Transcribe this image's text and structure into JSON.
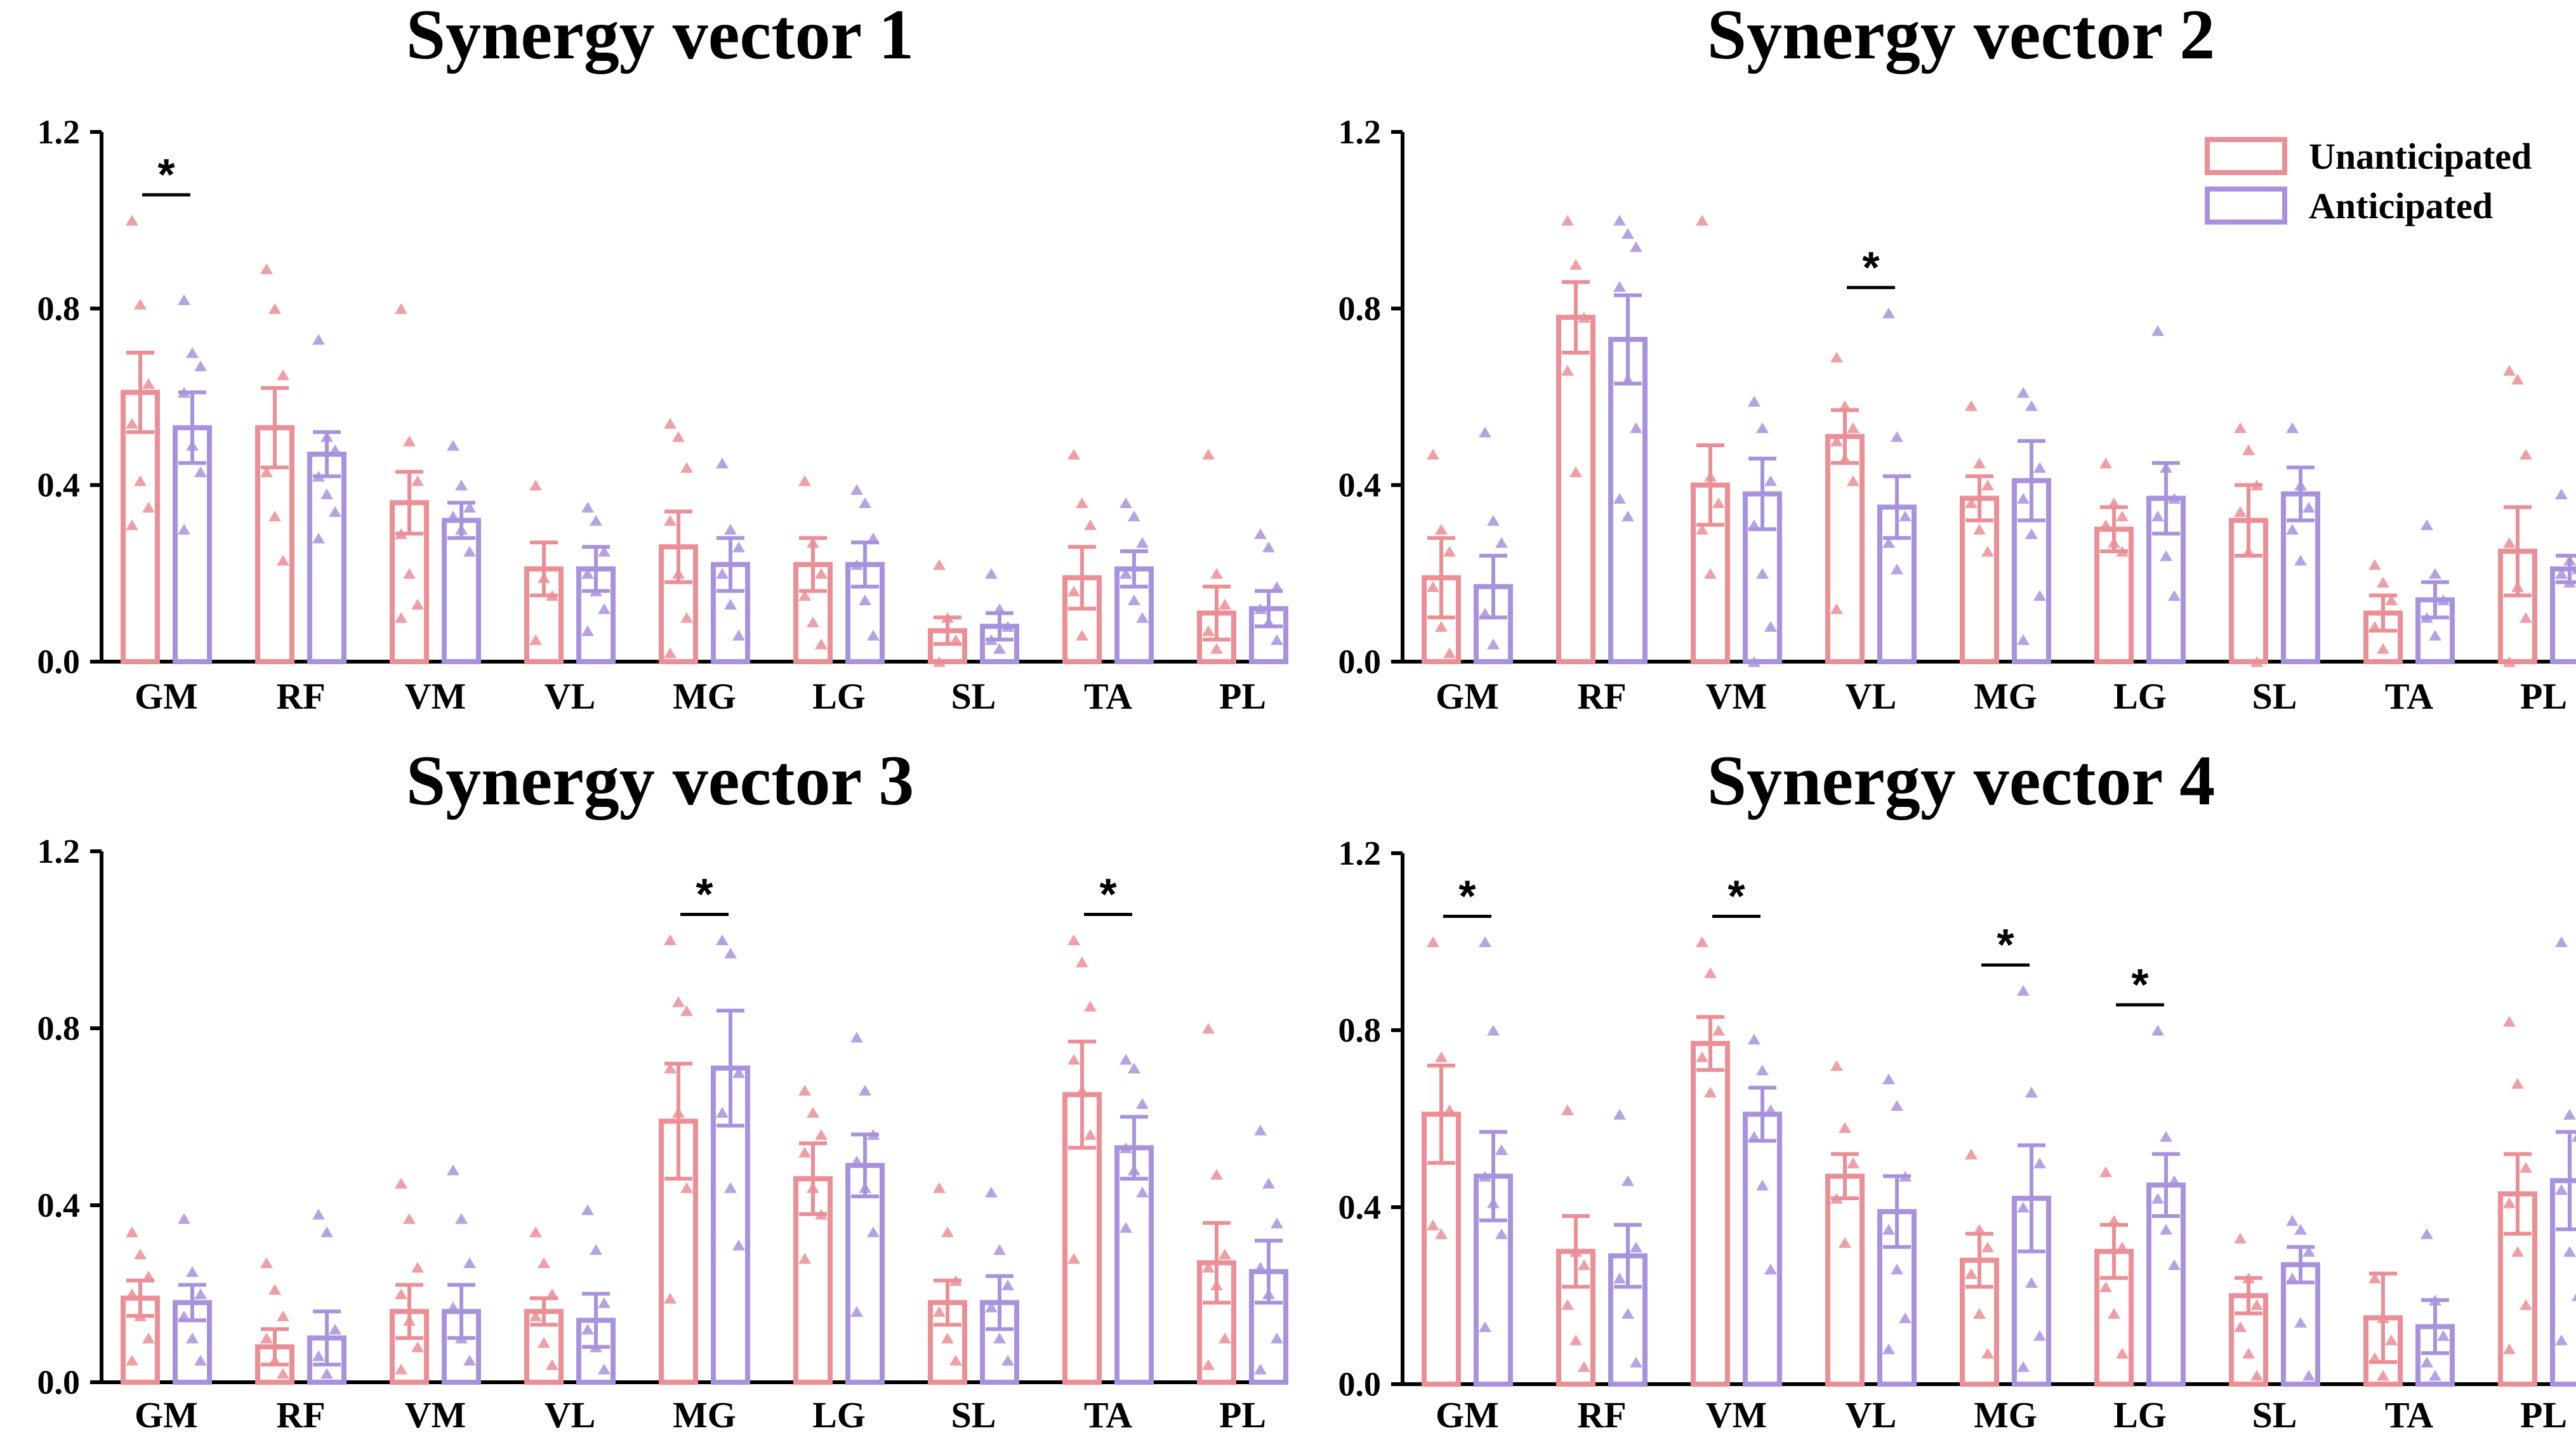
{
  "chart_data": [
    {
      "type": "bar",
      "title": "Synergy vector 1",
      "categories": [
        "GM",
        "RF",
        "VM",
        "VL",
        "MG",
        "LG",
        "SL",
        "TA",
        "PL"
      ],
      "ylim": [
        0,
        1.2
      ],
      "yticks": [
        "0.0",
        "0.4",
        "0.8",
        "1.2"
      ],
      "series": [
        {
          "name": "Unanticipated",
          "values": [
            0.61,
            0.53,
            0.36,
            0.21,
            0.26,
            0.22,
            0.07,
            0.19,
            0.11
          ],
          "errors": [
            0.09,
            0.09,
            0.07,
            0.06,
            0.08,
            0.06,
            0.03,
            0.07,
            0.06
          ],
          "points": [
            [
              1.0,
              0.81,
              0.63,
              0.54,
              0.41,
              0.35,
              0.31
            ],
            [
              0.89,
              0.8,
              0.65,
              0.43,
              0.33,
              0.23
            ],
            [
              0.8,
              0.5,
              0.41,
              0.29,
              0.2,
              0.13,
              0.1
            ],
            [
              0.4,
              0.19,
              0.15,
              0.05
            ],
            [
              0.54,
              0.51,
              0.44,
              0.32,
              0.2,
              0.1,
              0.02
            ],
            [
              0.41,
              0.27,
              0.2,
              0.15,
              0.09,
              0.04
            ],
            [
              0.22,
              0.1,
              0.05,
              0.0
            ],
            [
              0.47,
              0.36,
              0.31,
              0.16,
              0.06
            ],
            [
              0.47,
              0.2,
              0.13,
              0.07,
              0.03
            ]
          ]
        },
        {
          "name": "Anticipated",
          "values": [
            0.53,
            0.47,
            0.32,
            0.21,
            0.22,
            0.22,
            0.08,
            0.21,
            0.12
          ],
          "errors": [
            0.08,
            0.05,
            0.04,
            0.05,
            0.06,
            0.05,
            0.03,
            0.04,
            0.04
          ],
          "points": [
            [
              0.82,
              0.7,
              0.67,
              0.61,
              0.49,
              0.43,
              0.3
            ],
            [
              0.73,
              0.51,
              0.48,
              0.42,
              0.38,
              0.34,
              0.28
            ],
            [
              0.49,
              0.4,
              0.35,
              0.33,
              0.3,
              0.25
            ],
            [
              0.35,
              0.32,
              0.25,
              0.2,
              0.16,
              0.12,
              0.07
            ],
            [
              0.45,
              0.3,
              0.26,
              0.2,
              0.13,
              0.06
            ],
            [
              0.39,
              0.36,
              0.28,
              0.22,
              0.14,
              0.06
            ],
            [
              0.2,
              0.12,
              0.08,
              0.05,
              0.03
            ],
            [
              0.36,
              0.33,
              0.27,
              0.2,
              0.14,
              0.1
            ],
            [
              0.29,
              0.26,
              0.17,
              0.12,
              0.09,
              0.05
            ]
          ]
        }
      ],
      "significance": [
        {
          "category": "GM",
          "label": "*"
        }
      ],
      "legend": false
    },
    {
      "type": "bar",
      "title": "Synergy vector 2",
      "categories": [
        "GM",
        "RF",
        "VM",
        "VL",
        "MG",
        "LG",
        "SL",
        "TA",
        "PL"
      ],
      "ylim": [
        0,
        1.2
      ],
      "yticks": [
        "0.0",
        "0.4",
        "0.8",
        "1.2"
      ],
      "series": [
        {
          "name": "Unanticipated",
          "values": [
            0.19,
            0.78,
            0.4,
            0.51,
            0.37,
            0.3,
            0.32,
            0.11,
            0.25
          ],
          "errors": [
            0.09,
            0.08,
            0.09,
            0.06,
            0.05,
            0.05,
            0.08,
            0.04,
            0.1
          ],
          "points": [
            [
              0.47,
              0.3,
              0.25,
              0.17,
              0.08,
              0.02
            ],
            [
              1.0,
              0.9,
              0.78,
              0.66,
              0.43
            ],
            [
              1.0,
              0.42,
              0.36,
              0.3,
              0.2
            ],
            [
              0.69,
              0.58,
              0.53,
              0.5,
              0.46,
              0.41,
              0.12
            ],
            [
              0.58,
              0.45,
              0.4,
              0.36,
              0.3,
              0.25
            ],
            [
              0.45,
              0.36,
              0.33,
              0.31,
              0.27,
              0.25
            ],
            [
              0.53,
              0.48,
              0.4,
              0.34,
              0.25,
              0.0
            ],
            [
              0.22,
              0.18,
              0.14,
              0.08,
              0.03
            ],
            [
              0.66,
              0.64,
              0.47,
              0.27,
              0.17,
              0.1,
              0.0
            ]
          ]
        },
        {
          "name": "Anticipated",
          "values": [
            0.17,
            0.73,
            0.38,
            0.35,
            0.41,
            0.37,
            0.38,
            0.14,
            0.21
          ],
          "errors": [
            0.07,
            0.1,
            0.08,
            0.07,
            0.09,
            0.08,
            0.06,
            0.04,
            0.03
          ],
          "points": [
            [
              0.52,
              0.32,
              0.27,
              0.11,
              0.04
            ],
            [
              1.0,
              0.97,
              0.94,
              0.85,
              0.64,
              0.53,
              0.37,
              0.33
            ],
            [
              0.59,
              0.53,
              0.41,
              0.31,
              0.2,
              0.08,
              0.0
            ],
            [
              0.79,
              0.51,
              0.33,
              0.27,
              0.21
            ],
            [
              0.61,
              0.58,
              0.44,
              0.37,
              0.29,
              0.15,
              0.05
            ],
            [
              0.75,
              0.44,
              0.37,
              0.33,
              0.24,
              0.15
            ],
            [
              0.53,
              0.4,
              0.35,
              0.3,
              0.23
            ],
            [
              0.31,
              0.2,
              0.14,
              0.1,
              0.06
            ],
            [
              0.38,
              0.23,
              0.21,
              0.2,
              0.18
            ]
          ]
        }
      ],
      "significance": [
        {
          "category": "VL",
          "label": "*"
        }
      ],
      "legend": true
    },
    {
      "type": "bar",
      "title": "Synergy vector 3",
      "categories": [
        "GM",
        "RF",
        "VM",
        "VL",
        "MG",
        "LG",
        "SL",
        "TA",
        "PL"
      ],
      "ylim": [
        0,
        1.2
      ],
      "yticks": [
        "0.0",
        "0.4",
        "0.8",
        "1.2"
      ],
      "series": [
        {
          "name": "Unanticipated",
          "values": [
            0.19,
            0.08,
            0.16,
            0.16,
            0.59,
            0.46,
            0.18,
            0.65,
            0.27
          ],
          "errors": [
            0.04,
            0.04,
            0.06,
            0.03,
            0.13,
            0.08,
            0.05,
            0.12,
            0.09
          ],
          "points": [
            [
              0.34,
              0.29,
              0.24,
              0.2,
              0.15,
              0.1,
              0.05
            ],
            [
              0.27,
              0.21,
              0.15,
              0.1,
              0.05,
              0.02
            ],
            [
              0.45,
              0.37,
              0.26,
              0.2,
              0.14,
              0.08,
              0.03
            ],
            [
              0.34,
              0.27,
              0.2,
              0.15,
              0.09,
              0.04
            ],
            [
              1.0,
              0.86,
              0.84,
              0.71,
              0.61,
              0.44,
              0.19
            ],
            [
              0.66,
              0.61,
              0.56,
              0.52,
              0.44,
              0.38,
              0.28
            ],
            [
              0.44,
              0.34,
              0.23,
              0.16,
              0.1,
              0.05
            ],
            [
              1.0,
              0.95,
              0.85,
              0.73,
              0.66,
              0.56,
              0.28
            ],
            [
              0.8,
              0.47,
              0.29,
              0.26,
              0.22,
              0.1,
              0.04
            ]
          ]
        },
        {
          "name": "Anticipated",
          "values": [
            0.18,
            0.1,
            0.16,
            0.14,
            0.71,
            0.49,
            0.18,
            0.53,
            0.25
          ],
          "errors": [
            0.04,
            0.06,
            0.06,
            0.06,
            0.13,
            0.07,
            0.06,
            0.07,
            0.07
          ],
          "points": [
            [
              0.37,
              0.25,
              0.2,
              0.15,
              0.1,
              0.05
            ],
            [
              0.38,
              0.34,
              0.12,
              0.06,
              0.02
            ],
            [
              0.48,
              0.37,
              0.27,
              0.17,
              0.1,
              0.05
            ],
            [
              0.39,
              0.3,
              0.18,
              0.12,
              0.08,
              0.03
            ],
            [
              1.0,
              0.97,
              0.7,
              0.61,
              0.44,
              0.31
            ],
            [
              0.78,
              0.66,
              0.56,
              0.5,
              0.44,
              0.34,
              0.16
            ],
            [
              0.43,
              0.3,
              0.22,
              0.17,
              0.1,
              0.05
            ],
            [
              0.73,
              0.71,
              0.63,
              0.53,
              0.48,
              0.43,
              0.35
            ],
            [
              0.57,
              0.45,
              0.36,
              0.26,
              0.2,
              0.1,
              0.03
            ]
          ]
        }
      ],
      "significance": [
        {
          "category": "MG",
          "label": "*"
        },
        {
          "category": "TA",
          "label": "*"
        }
      ],
      "legend": false
    },
    {
      "type": "bar",
      "title": "Synergy vector 4",
      "categories": [
        "GM",
        "RF",
        "VM",
        "VL",
        "MG",
        "LG",
        "SL",
        "TA",
        "PL"
      ],
      "ylim": [
        0,
        1.2
      ],
      "yticks": [
        "0.0",
        "0.4",
        "0.8",
        "1.2"
      ],
      "series": [
        {
          "name": "Unanticipated",
          "values": [
            0.61,
            0.3,
            0.77,
            0.47,
            0.28,
            0.3,
            0.2,
            0.15,
            0.43
          ],
          "errors": [
            0.11,
            0.08,
            0.06,
            0.05,
            0.06,
            0.06,
            0.04,
            0.1,
            0.09
          ],
          "points": [
            [
              1.0,
              0.74,
              0.62,
              0.36,
              0.34
            ],
            [
              0.62,
              0.3,
              0.27,
              0.18,
              0.1,
              0.04
            ],
            [
              1.0,
              0.93,
              0.8,
              0.74,
              0.66
            ],
            [
              0.72,
              0.58,
              0.5,
              0.42,
              0.32
            ],
            [
              0.52,
              0.35,
              0.31,
              0.25,
              0.16,
              0.07
            ],
            [
              0.48,
              0.37,
              0.31,
              0.22,
              0.16,
              0.07
            ],
            [
              0.33,
              0.24,
              0.18,
              0.13,
              0.07,
              0.02
            ],
            [
              0.24,
              0.15,
              0.1,
              0.06,
              0.02
            ],
            [
              0.82,
              0.68,
              0.49,
              0.41,
              0.3,
              0.18,
              0.08
            ]
          ]
        },
        {
          "name": "Anticipated",
          "values": [
            0.47,
            0.29,
            0.61,
            0.39,
            0.42,
            0.45,
            0.27,
            0.13,
            0.46
          ],
          "errors": [
            0.1,
            0.07,
            0.06,
            0.08,
            0.12,
            0.07,
            0.04,
            0.06,
            0.11
          ],
          "points": [
            [
              1.0,
              0.8,
              0.53,
              0.47,
              0.41,
              0.34,
              0.13
            ],
            [
              0.61,
              0.46,
              0.31,
              0.24,
              0.16,
              0.05
            ],
            [
              0.78,
              0.71,
              0.62,
              0.56,
              0.45,
              0.26
            ],
            [
              0.69,
              0.63,
              0.47,
              0.35,
              0.26,
              0.15,
              0.08
            ],
            [
              0.89,
              0.66,
              0.5,
              0.4,
              0.23,
              0.11,
              0.04
            ],
            [
              0.8,
              0.56,
              0.46,
              0.42,
              0.35,
              0.27
            ],
            [
              0.37,
              0.35,
              0.3,
              0.24,
              0.14,
              0.02
            ],
            [
              0.34,
              0.19,
              0.11,
              0.05,
              0.02
            ],
            [
              1.0,
              0.61,
              0.56,
              0.44,
              0.3,
              0.2,
              0.1
            ]
          ]
        }
      ],
      "significance": [
        {
          "category": "GM",
          "label": "*"
        },
        {
          "category": "VM",
          "label": "*"
        },
        {
          "category": "MG",
          "label": "*"
        },
        {
          "category": "LG",
          "label": "*"
        }
      ],
      "legend": false
    }
  ],
  "legend": {
    "items": [
      {
        "label": "Unanticipated",
        "color": "#EB8E95"
      },
      {
        "label": "Anticipated",
        "color": "#A992DD"
      }
    ]
  },
  "colors": {
    "unanticipated_bar": "#EB8E95",
    "anticipated_bar": "#A992DD",
    "unanticipated_point": "#EB8E95",
    "anticipated_point": "#A992DD",
    "axis": "#000000"
  }
}
